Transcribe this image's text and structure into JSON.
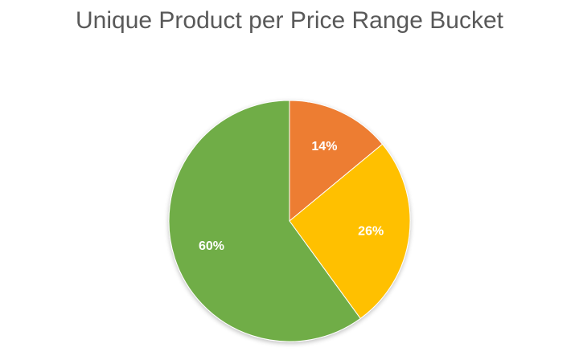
{
  "chart_data": {
    "type": "pie",
    "title": "Unique Product per Price Range Bucket",
    "slices": [
      {
        "value": 14,
        "label": "14%",
        "color": "#ED7D31"
      },
      {
        "value": 26,
        "label": "26%",
        "color": "#FFC000"
      },
      {
        "value": 60,
        "label": "60%",
        "color": "#70AD47"
      }
    ],
    "start_angle_deg": 0,
    "direction": "clockwise",
    "legend": "none"
  }
}
